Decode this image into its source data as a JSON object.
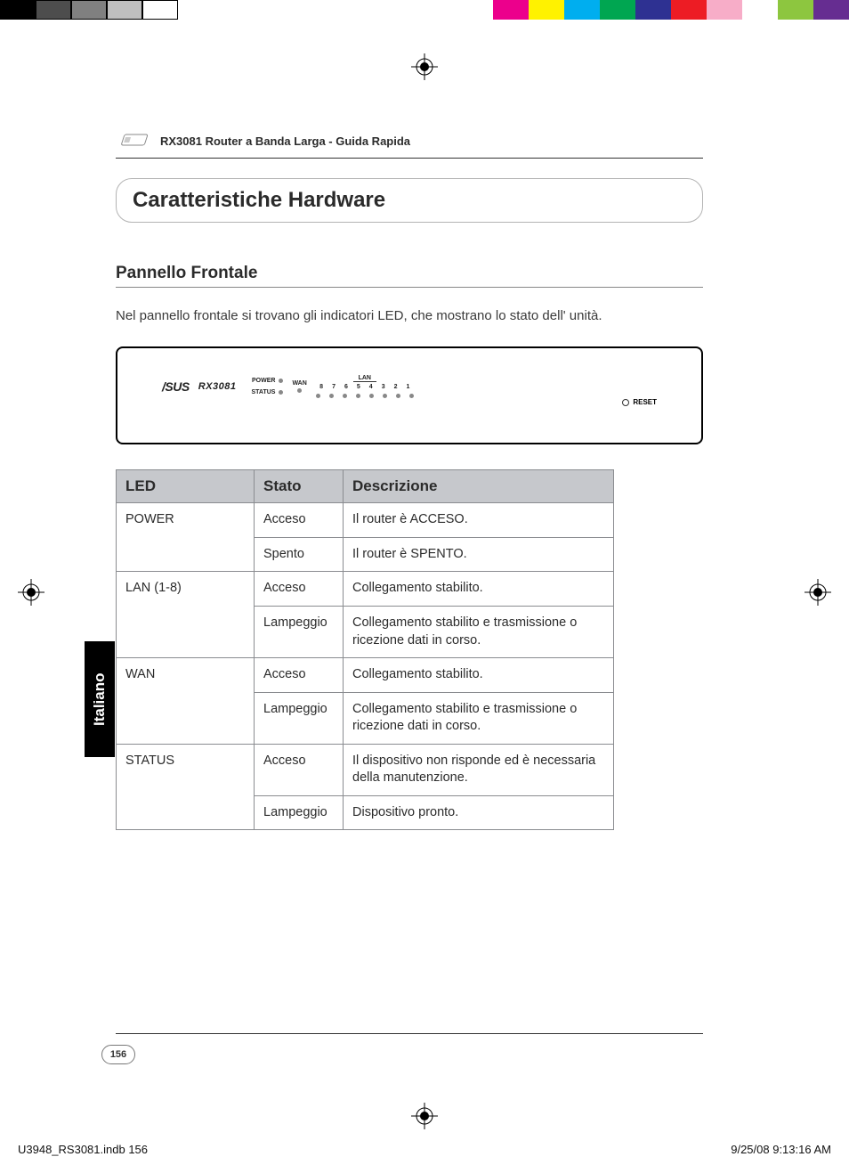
{
  "colorbar": {
    "left": [
      "#000000",
      "#4d4d4d",
      "#808080",
      "#bfbfbf",
      "#ffffff"
    ],
    "right": [
      "#ec008c",
      "#fff200",
      "#00aeef",
      "#00a651",
      "#2e3192",
      "#ed1c24",
      "#f7adc8",
      "#ffffff",
      "#8dc63f",
      "#662d91"
    ]
  },
  "header": {
    "title": "RX3081 Router a Banda Larga - Guida Rapida"
  },
  "section": {
    "title": "Caratteristiche Hardware"
  },
  "sub": {
    "heading": "Pannello Frontale",
    "intro": "Nel pannello frontale si trovano gli indicatori LED, che mostrano lo stato dell' unità."
  },
  "device": {
    "brand": "/SUS",
    "model": "RX3081",
    "power_label": "POWER",
    "status_label": "STATUS",
    "wan_label": "WAN",
    "lan_label": "LAN",
    "lan_ports": [
      "8",
      "7",
      "6",
      "5",
      "4",
      "3",
      "2",
      "1"
    ],
    "reset_label": "RESET"
  },
  "table": {
    "columns": [
      "LED",
      "Stato",
      "Descrizione"
    ],
    "rows": [
      {
        "led": "POWER",
        "stato": "Acceso",
        "desc": "Il router è ACCESO.",
        "rowspan": 2
      },
      {
        "led": "",
        "stato": "Spento",
        "desc": "Il router è SPENTO."
      },
      {
        "led": "LAN (1-8)",
        "stato": "Acceso",
        "desc": "Collegamento stabilito.",
        "rowspan": 2
      },
      {
        "led": "",
        "stato": "Lampeggio",
        "desc": "Collegamento stabilito e trasmissione o ricezione dati in corso."
      },
      {
        "led": "WAN",
        "stato": "Acceso",
        "desc": "Collegamento stabilito.",
        "rowspan": 2
      },
      {
        "led": "",
        "stato": "Lampeggio",
        "desc": "Collegamento stabilito e trasmissione o ricezione dati in corso."
      },
      {
        "led": "STATUS",
        "stato": "Acceso",
        "desc": "Il dispositivo non risponde ed è necessaria della manutenzione.",
        "rowspan": 2
      },
      {
        "led": "",
        "stato": "Lampeggio",
        "desc": "Dispositivo pronto."
      }
    ]
  },
  "sidetab": "Italiano",
  "pagenum": "156",
  "footer": {
    "left": "U3948_RS3081.indb   156",
    "right": "9/25/08   9:13:16 AM"
  }
}
